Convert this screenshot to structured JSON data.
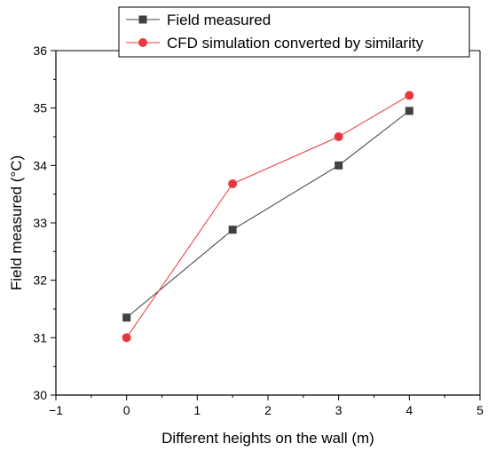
{
  "chart_data": {
    "type": "line",
    "title": "",
    "xlabel": "Different heights on the wall (m)",
    "ylabel": "Field measured (°C)",
    "xlim": [
      -1,
      5
    ],
    "ylim": [
      30,
      36
    ],
    "xticks": [
      -1,
      0,
      1,
      2,
      3,
      4,
      5
    ],
    "yticks": [
      30,
      31,
      32,
      33,
      34,
      35,
      36
    ],
    "grid": false,
    "legend_position": "top-right",
    "series": [
      {
        "name": "Field measured",
        "marker": "square",
        "color": "#404040",
        "x": [
          0,
          1.5,
          3,
          4
        ],
        "values": [
          31.35,
          32.88,
          34.0,
          34.95
        ]
      },
      {
        "name": "CFD simulation converted by similarity",
        "marker": "circle",
        "color": "#e8383d",
        "x": [
          0,
          1.5,
          3,
          4
        ],
        "values": [
          31.0,
          33.68,
          34.5,
          35.22
        ]
      }
    ]
  }
}
